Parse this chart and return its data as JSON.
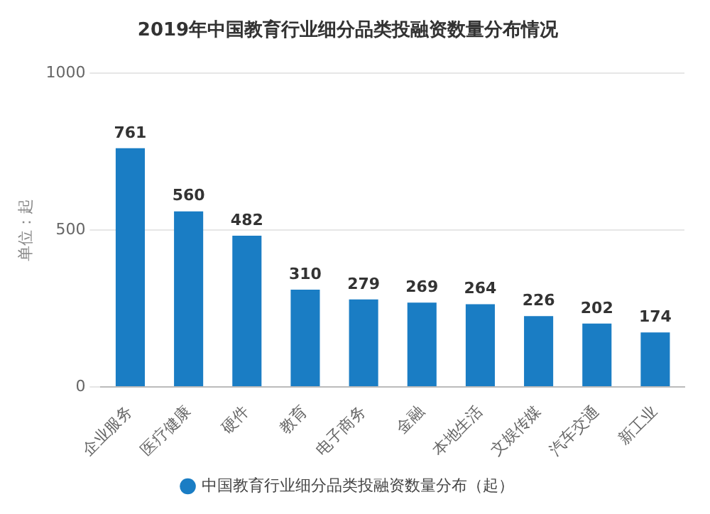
{
  "chart_data": {
    "type": "bar",
    "title": "2019年中国教育行业细分品类投融资数量分布情况",
    "ylabel": "单位：起",
    "categories": [
      "企业服务",
      "医疗健康",
      "硬件",
      "教育",
      "电子商务",
      "金融",
      "本地生活",
      "文娱传媒",
      "汽车交通",
      "新工业"
    ],
    "series": [
      {
        "name": "中国教育行业细分品类投融资数量分布（起）",
        "color": "#1a7dc4",
        "values": [
          761,
          560,
          482,
          310,
          279,
          269,
          264,
          226,
          202,
          174
        ]
      }
    ],
    "ylim": [
      0,
      1000
    ],
    "yticks": [
      0,
      500,
      1000
    ],
    "grid": "y",
    "legend": "bottom",
    "data_labels": true
  }
}
